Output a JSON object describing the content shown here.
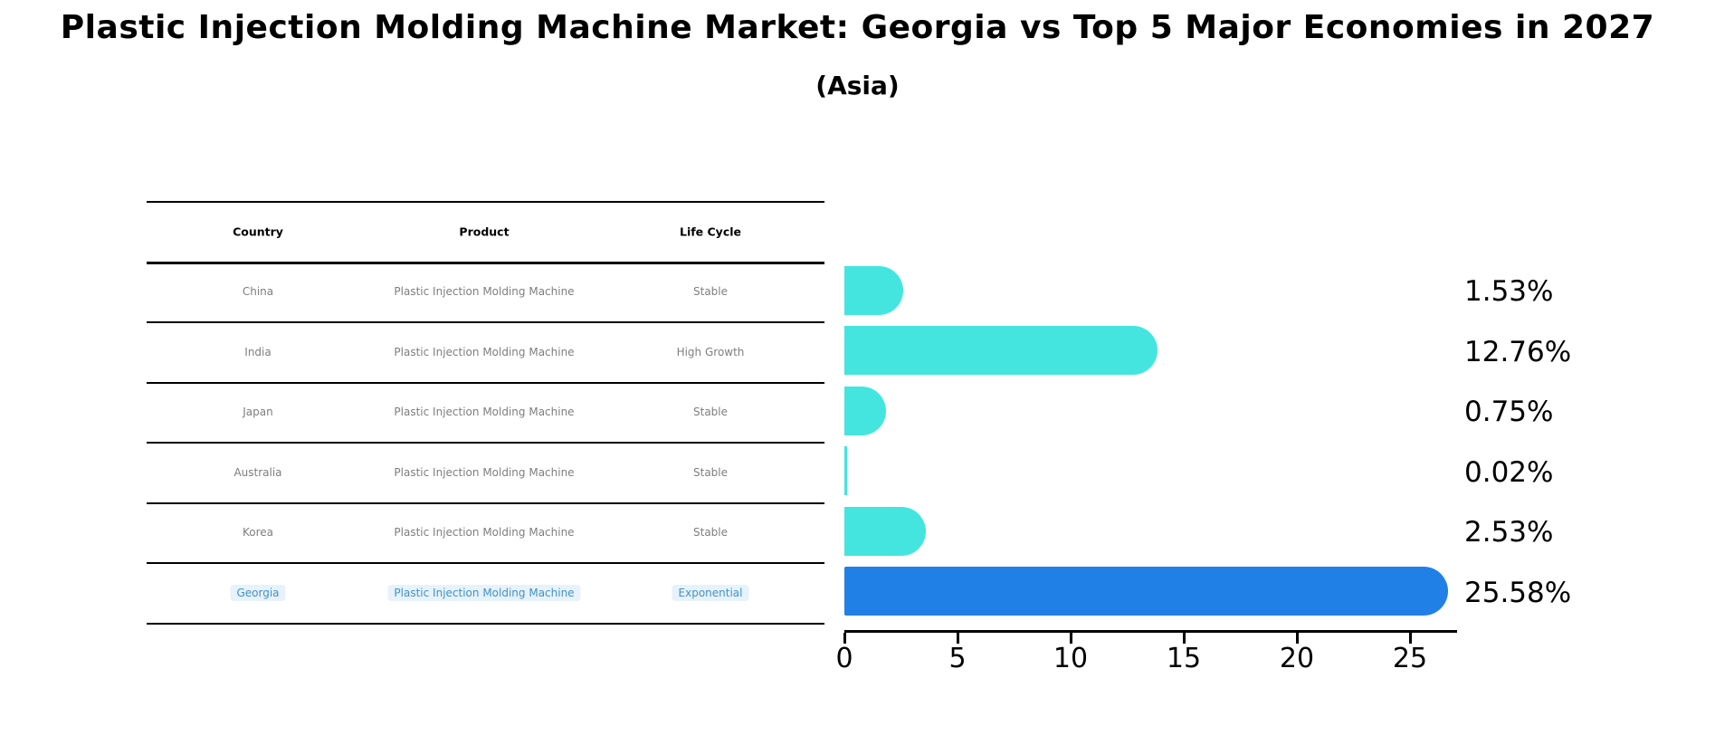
{
  "title": "Plastic Injection Molding Machine Market: Georgia vs Top 5 Major Economies in 2027",
  "subtitle": "(Asia)",
  "table": {
    "headers": [
      "Country",
      "Product",
      "Life Cycle"
    ],
    "rows": [
      {
        "country": "China",
        "product": "Plastic Injection Molding Machine",
        "life_cycle": "Stable",
        "highlighted": false
      },
      {
        "country": "India",
        "product": "Plastic Injection Molding Machine",
        "life_cycle": "High Growth",
        "highlighted": false
      },
      {
        "country": "Japan",
        "product": "Plastic Injection Molding Machine",
        "life_cycle": "Stable",
        "highlighted": false
      },
      {
        "country": "Australia",
        "product": "Plastic Injection Molding Machine",
        "life_cycle": "Stable",
        "highlighted": false
      },
      {
        "country": "Korea",
        "product": "Plastic Injection Molding Machine",
        "life_cycle": "Stable",
        "highlighted": false
      },
      {
        "country": "Georgia",
        "product": "Plastic Injection Molding Machine",
        "life_cycle": "Exponential",
        "highlighted": true
      }
    ]
  },
  "chart_data": {
    "type": "bar",
    "orientation": "horizontal",
    "categories": [
      "China",
      "India",
      "Japan",
      "Australia",
      "Korea",
      "Georgia"
    ],
    "values": [
      1.53,
      12.76,
      0.75,
      0.02,
      2.53,
      25.58
    ],
    "value_labels": [
      "1.53%",
      "12.76%",
      "0.75%",
      "0.02%",
      "2.53%",
      "25.58%"
    ],
    "highlight_index": 5,
    "x_ticks": [
      0,
      5,
      10,
      15,
      20,
      25
    ],
    "xlim": [
      0,
      27
    ],
    "grid": false,
    "legend": false,
    "colors": {
      "bar_default": "#44e5df",
      "bar_highlight": "#2180e6",
      "highlight_text": "#4292c6",
      "row_text": "#7e7e7e",
      "axis": "#000000"
    }
  }
}
